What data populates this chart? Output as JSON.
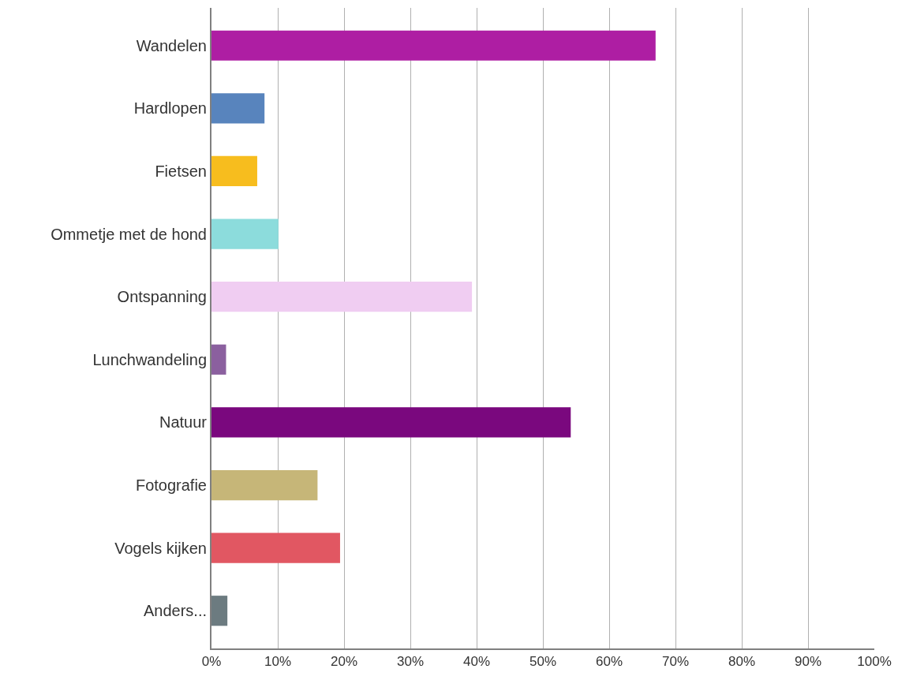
{
  "chart_data": {
    "type": "bar",
    "orientation": "horizontal",
    "categories": [
      "Wandelen",
      "Hardlopen",
      "Fietsen",
      "Ommetje met de hond",
      "Ontspanning",
      "Lunchwandeling",
      "Natuur",
      "Fotografie",
      "Vogels kijken",
      "Anders..."
    ],
    "values": [
      67,
      8,
      6.9,
      10.1,
      39.3,
      2.2,
      54.2,
      16,
      19.4,
      2.4
    ],
    "colors": [
      "#ae1ea3",
      "#5884bd",
      "#f7bd1e",
      "#8cdcdc",
      "#f0cdf2",
      "#8b609f",
      "#7a087e",
      "#c6b678",
      "#e15762",
      "#6c7b80"
    ],
    "xlim": [
      0,
      100
    ],
    "xticks": [
      {
        "value": 0,
        "label": "0%"
      },
      {
        "value": 10,
        "label": "10%"
      },
      {
        "value": 20,
        "label": "20%"
      },
      {
        "value": 30,
        "label": "30%"
      },
      {
        "value": 40,
        "label": "40%"
      },
      {
        "value": 50,
        "label": "50%"
      },
      {
        "value": 60,
        "label": "60%"
      },
      {
        "value": 70,
        "label": "70%"
      },
      {
        "value": 80,
        "label": "80%"
      },
      {
        "value": 90,
        "label": "90%"
      },
      {
        "value": 100,
        "label": "100%"
      }
    ],
    "grid": "x"
  }
}
